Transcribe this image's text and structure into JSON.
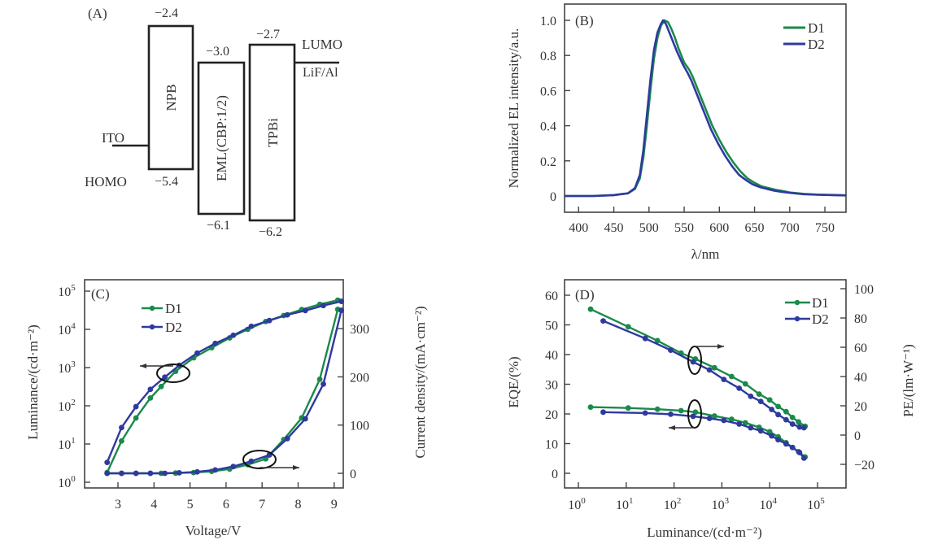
{
  "figure": {
    "panels": [
      "(A)",
      "(B)",
      "(C)",
      "(D)"
    ]
  },
  "colors": {
    "D1": "#1a8a4a",
    "D2": "#2e3a9e",
    "axis": "#444444",
    "text": "#333333"
  },
  "energy_diagram": {
    "label": "(A)",
    "layers": [
      {
        "name": "NPB",
        "lumo": "−2.4",
        "homo": "−5.4"
      },
      {
        "name": "EML(CBP:1/2)",
        "lumo": "−3.0",
        "homo": "−6.1"
      },
      {
        "name": "TPBi",
        "lumo": "−2.7",
        "homo": "−6.2"
      }
    ],
    "anode": "ITO",
    "cathode": "LiF/Al",
    "lumo_label": "LUMO",
    "homo_label": "HOMO"
  },
  "chart_data": [
    {
      "id": "B",
      "label": "(B)",
      "type": "line",
      "title": "",
      "xlabel": "λ/nm",
      "ylabel": "Normalized EL intensity/a.u.",
      "xlim": [
        380,
        780
      ],
      "ylim": [
        -0.1,
        1.08
      ],
      "xticks": [
        400,
        450,
        500,
        550,
        600,
        650,
        700,
        750
      ],
      "yticks": [
        0,
        0.2,
        0.4,
        0.6,
        0.8,
        1.0
      ],
      "ytick_labels": [
        "0",
        "0.2",
        "0.4",
        "0.6",
        "0.8",
        "1.0"
      ],
      "legend": [
        "D1",
        "D2"
      ],
      "legend_position": "top-right",
      "grid": false,
      "series": [
        {
          "name": "D1",
          "x": [
            380,
            420,
            450,
            470,
            480,
            487,
            492,
            497,
            502,
            507,
            512,
            517,
            522,
            527,
            532,
            537,
            542,
            550,
            557,
            562,
            570,
            580,
            590,
            600,
            610,
            620,
            630,
            640,
            650,
            660,
            670,
            680,
            690,
            700,
            720,
            740,
            760,
            780
          ],
          "y": [
            0,
            0,
            0.005,
            0.015,
            0.04,
            0.1,
            0.22,
            0.4,
            0.6,
            0.78,
            0.9,
            0.97,
            1.0,
            0.99,
            0.95,
            0.9,
            0.84,
            0.76,
            0.72,
            0.68,
            0.6,
            0.5,
            0.4,
            0.32,
            0.25,
            0.19,
            0.14,
            0.1,
            0.075,
            0.055,
            0.045,
            0.035,
            0.028,
            0.02,
            0.012,
            0.008,
            0.006,
            0.004
          ]
        },
        {
          "name": "D2",
          "x": [
            380,
            420,
            450,
            470,
            480,
            487,
            492,
            497,
            502,
            507,
            512,
            517,
            520,
            524,
            530,
            535,
            540,
            548,
            555,
            560,
            568,
            578,
            588,
            598,
            608,
            618,
            628,
            638,
            648,
            658,
            668,
            678,
            688,
            700,
            720,
            740,
            760,
            780
          ],
          "y": [
            0,
            0,
            0.005,
            0.015,
            0.045,
            0.12,
            0.26,
            0.46,
            0.66,
            0.83,
            0.93,
            0.98,
            1.0,
            0.98,
            0.92,
            0.87,
            0.82,
            0.75,
            0.7,
            0.66,
            0.58,
            0.48,
            0.38,
            0.3,
            0.23,
            0.17,
            0.12,
            0.09,
            0.065,
            0.05,
            0.04,
            0.03,
            0.024,
            0.018,
            0.01,
            0.007,
            0.005,
            0.003
          ]
        }
      ]
    },
    {
      "id": "C",
      "label": "(C)",
      "type": "line",
      "title": "",
      "xlabel": "Voltage/V",
      "ylabel": "Luminance/(cd·m⁻²)",
      "y2label": "Current density/(mA·cm⁻²)",
      "xlim": [
        2.1,
        9.5
      ],
      "ylim_log10": [
        -0.15,
        5.1
      ],
      "y2lim": [
        -35,
        370
      ],
      "xticks": [
        3,
        4,
        5,
        6,
        7,
        8,
        9
      ],
      "yticks_log": [
        0,
        1,
        2,
        3,
        4,
        5
      ],
      "ytick_labels": [
        "10",
        "10",
        "10",
        "10",
        "10",
        "10"
      ],
      "ytick_exponents": [
        "0",
        "1",
        "2",
        "3",
        "4",
        "5"
      ],
      "y2ticks": [
        0,
        100,
        200,
        300
      ],
      "legend": [
        "D1",
        "D2"
      ],
      "legend_position": "top-left",
      "grid": false,
      "annotations": [
        "ellipse+arrow left: luminance curves",
        "ellipse+arrow right: current density curves"
      ],
      "series": [
        {
          "name": "D1",
          "axis": "left",
          "quantity": "luminance",
          "x": [
            2.7,
            3.1,
            3.5,
            3.9,
            4.2,
            4.6,
            5.1,
            5.6,
            6.1,
            6.6,
            7.1,
            7.6,
            8.1,
            8.6,
            9.1
          ],
          "y": [
            1.8,
            12,
            48,
            160,
            320,
            800,
            1800,
            3300,
            6000,
            10000,
            16000,
            23000,
            33000,
            45000,
            58000
          ]
        },
        {
          "name": "D2",
          "axis": "left",
          "quantity": "luminance",
          "x": [
            2.7,
            3.1,
            3.5,
            3.9,
            4.3,
            4.7,
            5.2,
            5.7,
            6.2,
            6.7,
            7.2,
            7.7,
            8.2,
            8.7,
            9.2
          ],
          "y": [
            3.3,
            27,
            95,
            270,
            560,
            1150,
            2400,
            4300,
            7000,
            12000,
            17000,
            24000,
            31000,
            42000,
            54000
          ]
        },
        {
          "name": "D1",
          "axis": "right",
          "quantity": "current_density",
          "x": [
            2.7,
            3.1,
            3.5,
            3.9,
            4.2,
            4.6,
            5.1,
            5.6,
            6.1,
            6.6,
            7.1,
            7.6,
            8.1,
            8.6,
            9.1
          ],
          "y": [
            0,
            0,
            0,
            0,
            0,
            0.5,
            1.5,
            4,
            9,
            18,
            30,
            70,
            115,
            195,
            340
          ]
        },
        {
          "name": "D2",
          "axis": "right",
          "quantity": "current_density",
          "x": [
            2.7,
            3.1,
            3.5,
            3.9,
            4.3,
            4.7,
            5.2,
            5.7,
            6.2,
            6.7,
            7.2,
            7.7,
            8.2,
            8.7,
            9.2
          ],
          "y": [
            0,
            0,
            0,
            0,
            0,
            1,
            3,
            7,
            14,
            25,
            38,
            72,
            113,
            185,
            338
          ]
        }
      ]
    },
    {
      "id": "D",
      "label": "(D)",
      "type": "line",
      "title": "",
      "xlabel": "Luminance/(cd·m⁻²)",
      "ylabel": "EQE/(%)",
      "y2label": "PE/(lm·W⁻¹)",
      "xlim_log10": [
        -0.3,
        5.6
      ],
      "ylim": [
        -5,
        65
      ],
      "y2lim": [
        -33,
        103
      ],
      "xticks_log": [
        0,
        1,
        2,
        3,
        4,
        5
      ],
      "xtick_labels": [
        "10",
        "10",
        "10",
        "10",
        "10",
        "10"
      ],
      "xtick_exponents": [
        "0",
        "1",
        "2",
        "3",
        "4",
        "5"
      ],
      "yticks": [
        0,
        10,
        20,
        30,
        40,
        50,
        60
      ],
      "y2ticks": [
        -20,
        0,
        20,
        40,
        60,
        80,
        100
      ],
      "y2tick_labels": [
        "−20",
        "0",
        "20",
        "40",
        "60",
        "80",
        "100"
      ],
      "legend": [
        "D1",
        "D2"
      ],
      "legend_position": "top-right",
      "grid": false,
      "annotations": [
        "ellipse+arrow right: PE curves",
        "ellipse+arrow left: EQE curves"
      ],
      "series": [
        {
          "name": "D1",
          "axis": "left",
          "quantity": "EQE",
          "x": [
            1.8,
            11,
            45,
            140,
            280,
            700,
            1600,
            3100,
            6000,
            10000,
            15000,
            22000,
            30000,
            40000,
            55000
          ],
          "y": [
            22.3,
            22,
            21.6,
            21.1,
            20.6,
            19.3,
            18.2,
            17,
            15.5,
            14,
            12.3,
            10.3,
            8.7,
            7.3,
            5.5
          ]
        },
        {
          "name": "D2",
          "axis": "left",
          "quantity": "EQE",
          "x": [
            3.3,
            25,
            85,
            250,
            550,
            1100,
            2300,
            4000,
            6500,
            11000,
            15000,
            22000,
            30000,
            42000,
            52000
          ],
          "y": [
            20.6,
            20.3,
            19.9,
            19.2,
            18.5,
            17.8,
            16.6,
            15.3,
            14.3,
            12.6,
            11.3,
            9.9,
            8.7,
            7,
            5.1
          ]
        },
        {
          "name": "D1",
          "axis": "right",
          "quantity": "PE",
          "x": [
            1.8,
            11,
            45,
            140,
            280,
            700,
            1600,
            3100,
            6000,
            10000,
            15000,
            22000,
            30000,
            40000,
            55000
          ],
          "y": [
            86,
            74,
            64.5,
            56,
            52,
            46,
            40,
            35,
            28,
            24,
            19.5,
            16,
            12,
            9,
            6
          ]
        },
        {
          "name": "D2",
          "axis": "right",
          "quantity": "PE",
          "x": [
            3.3,
            25,
            85,
            250,
            550,
            1100,
            2300,
            4000,
            6500,
            11000,
            15000,
            22000,
            30000,
            42000,
            52000
          ],
          "y": [
            78,
            66,
            58,
            50,
            44.5,
            38,
            32,
            26.5,
            23,
            17.5,
            14,
            10.5,
            7.5,
            5.5,
            5
          ]
        }
      ]
    }
  ]
}
